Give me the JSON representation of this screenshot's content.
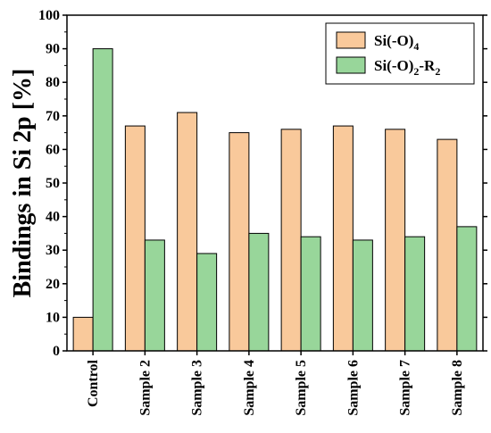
{
  "chart_data": {
    "type": "bar",
    "categories": [
      "Control",
      "Sample 2",
      "Sample 3",
      "Sample 4",
      "Sample 5",
      "Sample 6",
      "Sample 7",
      "Sample 8"
    ],
    "series": [
      {
        "name": "Si(-O)4",
        "name_main": "Si(-O)",
        "name_sub": "4",
        "color": "#f9c99b",
        "values": [
          10,
          67,
          71,
          65,
          66,
          67,
          66,
          63
        ]
      },
      {
        "name": "Si(-O)2-R2",
        "name_main": "Si(-O)",
        "name_sub": "2",
        "name_main2": "-R",
        "name_sub2": "2",
        "color": "#98d69a",
        "values": [
          90,
          33,
          29,
          35,
          34,
          33,
          34,
          37
        ]
      }
    ],
    "title": "",
    "xlabel": "",
    "ylabel": "Bindings in Si 2p [%]",
    "ylim": [
      0,
      100
    ],
    "yticks": [
      0,
      10,
      20,
      30,
      40,
      50,
      60,
      70,
      80,
      90,
      100
    ],
    "legend": "top-right",
    "grid": false
  }
}
